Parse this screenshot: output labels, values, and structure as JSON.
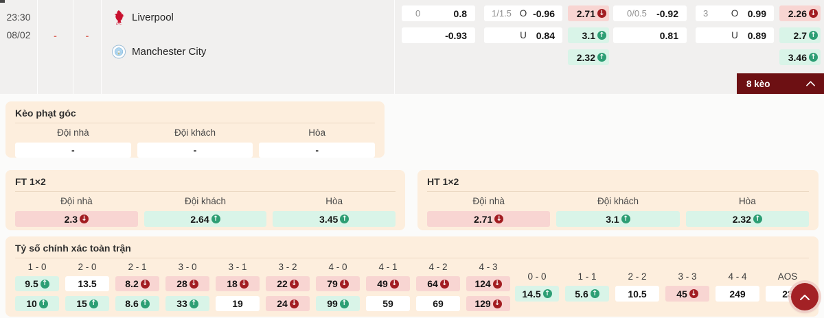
{
  "match": {
    "time": "23:30",
    "date": "08/02",
    "dash_1": "-",
    "dash_2": "-",
    "home_team": "Liverpool",
    "away_team": "Manchester City"
  },
  "top_odds": {
    "groups": [
      {
        "handicap": {
          "line": "0",
          "home": "0.8",
          "away": "-0.93"
        },
        "over_under": {
          "line": "1/1.5",
          "over_label": "O",
          "over": "-0.96",
          "under_label": "U",
          "under": "0.84"
        },
        "one_x_two": [
          {
            "value": "2.71",
            "trend": "down"
          },
          {
            "value": "3.1",
            "trend": "up"
          },
          {
            "value": "2.32",
            "trend": "up"
          }
        ]
      },
      {
        "handicap": {
          "line": "0/0.5",
          "home": "-0.92",
          "away": "0.81"
        },
        "over_under": {
          "line": "3",
          "over_label": "O",
          "over": "0.99",
          "under_label": "U",
          "under": "0.89"
        },
        "one_x_two": [
          {
            "value": "2.26",
            "trend": "down"
          },
          {
            "value": "2.7",
            "trend": "up"
          },
          {
            "value": "3.46",
            "trend": "up"
          }
        ]
      }
    ]
  },
  "banner": {
    "label": "8 kèo"
  },
  "team_headers": {
    "home": "Đội nhà",
    "away": "Đội khách",
    "draw": "Hòa"
  },
  "panels": {
    "corner": {
      "title": "Kèo phạt góc",
      "cells": [
        {
          "value": "-",
          "trend": "none"
        },
        {
          "value": "-",
          "trend": "none"
        },
        {
          "value": "-",
          "trend": "none"
        }
      ]
    },
    "ft": {
      "title": "FT 1×2",
      "cells": [
        {
          "value": "2.3",
          "trend": "down"
        },
        {
          "value": "2.64",
          "trend": "up"
        },
        {
          "value": "3.45",
          "trend": "up"
        }
      ]
    },
    "ht": {
      "title": "HT 1×2",
      "cells": [
        {
          "value": "2.71",
          "trend": "down"
        },
        {
          "value": "3.1",
          "trend": "up"
        },
        {
          "value": "2.32",
          "trend": "up"
        }
      ]
    }
  },
  "correct_score": {
    "title": "Tỷ số chính xác toàn trận",
    "main": [
      {
        "label": "1 - 0",
        "top": {
          "value": "9.5",
          "trend": "up"
        },
        "bottom": {
          "value": "10",
          "trend": "up"
        }
      },
      {
        "label": "2 - 0",
        "top": {
          "value": "13.5",
          "trend": "none"
        },
        "bottom": {
          "value": "15",
          "trend": "up"
        }
      },
      {
        "label": "2 - 1",
        "top": {
          "value": "8.2",
          "trend": "down"
        },
        "bottom": {
          "value": "8.6",
          "trend": "up"
        }
      },
      {
        "label": "3 - 0",
        "top": {
          "value": "28",
          "trend": "down"
        },
        "bottom": {
          "value": "33",
          "trend": "up"
        }
      },
      {
        "label": "3 - 1",
        "top": {
          "value": "18",
          "trend": "down"
        },
        "bottom": {
          "value": "19",
          "trend": "none"
        }
      },
      {
        "label": "3 - 2",
        "top": {
          "value": "22",
          "trend": "down"
        },
        "bottom": {
          "value": "24",
          "trend": "down"
        }
      },
      {
        "label": "4 - 0",
        "top": {
          "value": "79",
          "trend": "down"
        },
        "bottom": {
          "value": "99",
          "trend": "up"
        }
      },
      {
        "label": "4 - 1",
        "top": {
          "value": "49",
          "trend": "down"
        },
        "bottom": {
          "value": "59",
          "trend": "none"
        }
      },
      {
        "label": "4 - 2",
        "top": {
          "value": "64",
          "trend": "down"
        },
        "bottom": {
          "value": "69",
          "trend": "none"
        }
      },
      {
        "label": "4 - 3",
        "top": {
          "value": "124",
          "trend": "down"
        },
        "bottom": {
          "value": "129",
          "trend": "down"
        }
      }
    ],
    "draws": [
      {
        "label": "0 - 0",
        "odds": {
          "value": "14.5",
          "trend": "up"
        }
      },
      {
        "label": "1 - 1",
        "odds": {
          "value": "5.6",
          "trend": "up"
        }
      },
      {
        "label": "2 - 2",
        "odds": {
          "value": "10.5",
          "trend": "none"
        }
      },
      {
        "label": "3 - 3",
        "odds": {
          "value": "45",
          "trend": "down"
        }
      },
      {
        "label": "4 - 4",
        "odds": {
          "value": "249",
          "trend": "none"
        }
      },
      {
        "label": "AOS",
        "odds": {
          "value": "23",
          "trend": "none"
        }
      }
    ]
  },
  "icons": {
    "banner_chevron": "chevron-up",
    "fab": "chevron-up",
    "trend_up": "arrow-up-circle",
    "trend_down": "arrow-down-circle"
  },
  "colors": {
    "topbar_bg": "#f1f0ef",
    "panel_bg": "#fdeedd",
    "pink_cell": "#f8d5d2",
    "mint_cell": "#d9f4e8",
    "trend_up": "#2d9e74",
    "trend_down": "#a21d22",
    "banner_bg": "#6d1013",
    "fab_bg": "#a32125",
    "liverpool_red": "#c8102e",
    "city_blue": "#aed6f1"
  }
}
